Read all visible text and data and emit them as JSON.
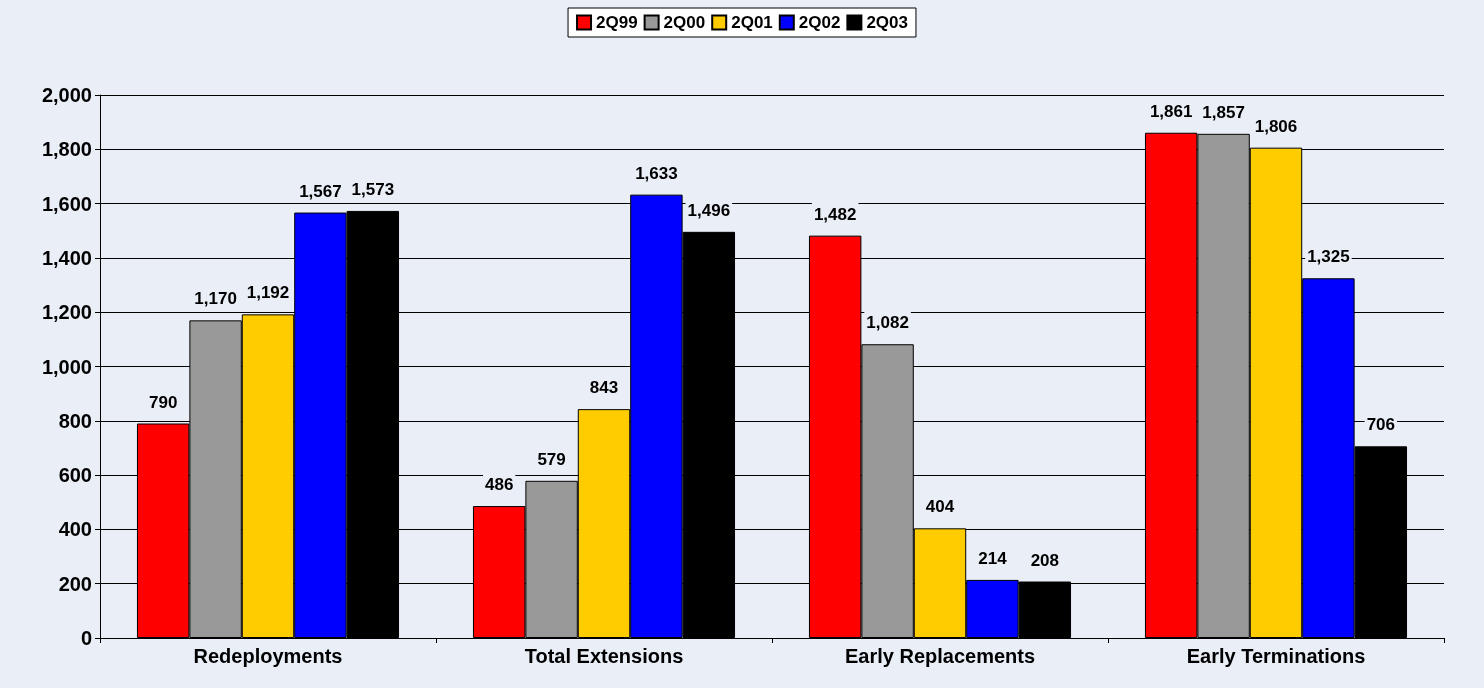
{
  "chart_data": {
    "type": "bar",
    "categories": [
      "Redeployments",
      "Total Extensions",
      "Early Replacements",
      "Early Terminations"
    ],
    "series": [
      {
        "name": "2Q99",
        "color": "#ff0000",
        "values": [
          790,
          486,
          1482,
          1861
        ],
        "value_labels": [
          "790",
          "486",
          "1,482",
          "1,861"
        ]
      },
      {
        "name": "2Q00",
        "color": "#999999",
        "values": [
          1170,
          579,
          1082,
          1857
        ],
        "value_labels": [
          "1,170",
          "579",
          "1,082",
          "1,857"
        ]
      },
      {
        "name": "2Q01",
        "color": "#ffcc00",
        "values": [
          1192,
          843,
          404,
          1806
        ],
        "value_labels": [
          "1,192",
          "843",
          "404",
          "1,806"
        ]
      },
      {
        "name": "2Q02",
        "color": "#0000ff",
        "values": [
          1567,
          1633,
          214,
          1325
        ],
        "value_labels": [
          "1,567",
          "1,633",
          "214",
          "1,325"
        ]
      },
      {
        "name": "2Q03",
        "color": "#000000",
        "values": [
          1573,
          1496,
          208,
          706
        ],
        "value_labels": [
          "1,573",
          "1,496",
          "208",
          "706"
        ]
      }
    ],
    "ylim": [
      0,
      2000
    ],
    "yticks": [
      0,
      200,
      400,
      600,
      800,
      {
        "value": 1000,
        "label": "1,000"
      },
      {
        "value": 1200,
        "label": "1,200"
      },
      {
        "value": 1400,
        "label": "1,400"
      },
      {
        "value": 1600,
        "label": "1,600"
      },
      {
        "value": 1800,
        "label": "1,800"
      },
      {
        "value": 2000,
        "label": "2,000"
      }
    ],
    "grid": "y",
    "legend": "top"
  }
}
